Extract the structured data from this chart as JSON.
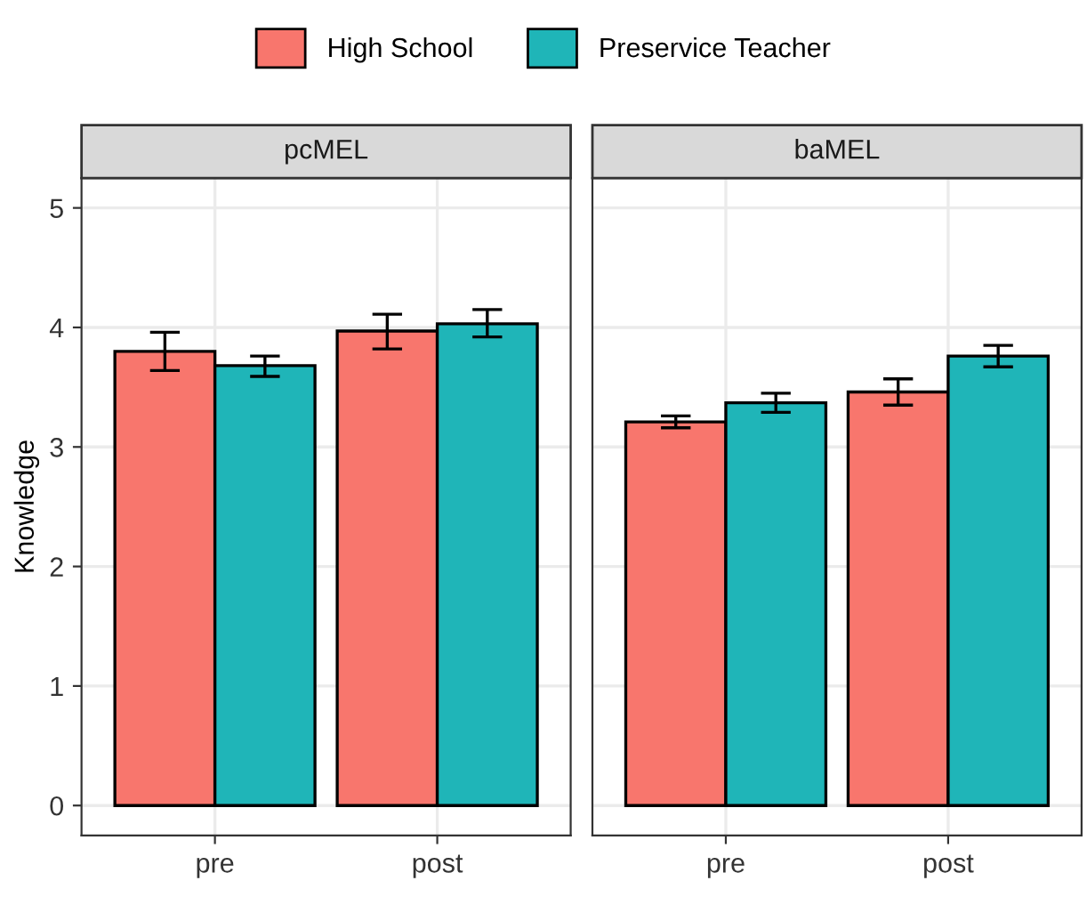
{
  "chart_data": [
    {
      "type": "bar",
      "title": "pcMEL",
      "ylabel": "Knowledge",
      "categories": [
        "pre",
        "post"
      ],
      "ylim": [
        -0.25,
        5.25
      ],
      "yticks": [
        0,
        1,
        2,
        3,
        4,
        5
      ],
      "grid": true,
      "legend": "top",
      "series": [
        {
          "name": "High School",
          "color": "#f8766d",
          "values": [
            3.8,
            3.97
          ],
          "errors": [
            [
              3.64,
              3.96
            ],
            [
              3.82,
              4.11
            ]
          ]
        },
        {
          "name": "Preservice Teacher",
          "color": "#1fb5b8",
          "values": [
            3.68,
            4.03
          ],
          "errors": [
            [
              3.59,
              3.76
            ],
            [
              3.92,
              4.15
            ]
          ]
        }
      ]
    },
    {
      "type": "bar",
      "title": "baMEL",
      "categories": [
        "pre",
        "post"
      ],
      "ylim": [
        -0.25,
        5.25
      ],
      "yticks": [
        0,
        1,
        2,
        3,
        4,
        5
      ],
      "grid": true,
      "tick_labels": "x",
      "series": [
        {
          "color": "#f8766d",
          "values": [
            3.21,
            3.46
          ],
          "errors": [
            [
              3.16,
              3.26
            ],
            [
              3.35,
              3.57
            ]
          ]
        },
        {
          "color": "#1fb5b8",
          "values": [
            3.37,
            3.76
          ],
          "errors": [
            [
              3.29,
              3.45
            ],
            [
              3.67,
              3.85
            ]
          ]
        }
      ]
    }
  ]
}
